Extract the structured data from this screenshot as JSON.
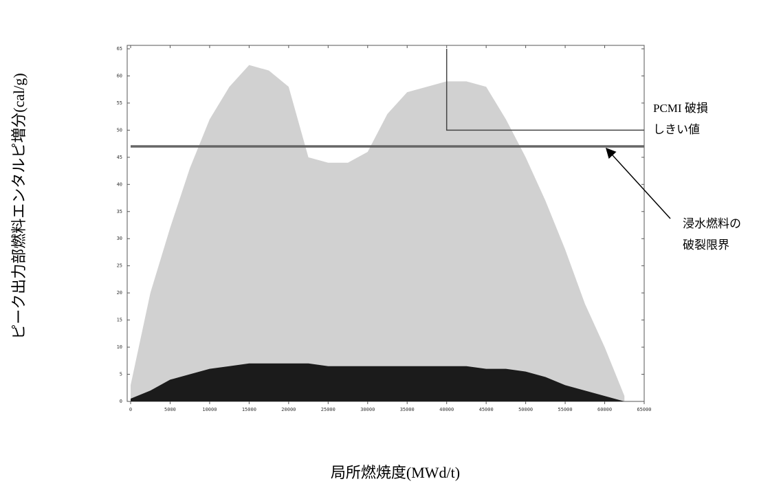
{
  "chart_data": {
    "type": "area",
    "xlabel": "局所燃焼度(MWd/t)",
    "ylabel": "ピーク出力部燃料エンタルピ増分(cal/g)",
    "x": [
      0,
      2500,
      5000,
      7500,
      10000,
      12500,
      15000,
      17500,
      20000,
      22500,
      25000,
      27500,
      30000,
      32500,
      35000,
      37500,
      40000,
      42500,
      45000,
      47500,
      50000,
      52500,
      55000,
      57500,
      60000,
      62500
    ],
    "series": [
      {
        "color": "#9a9a9a",
        "values": [
          3,
          20,
          32,
          43,
          52,
          58,
          62,
          61,
          58,
          45,
          44,
          44,
          46,
          53,
          57,
          58,
          59,
          59,
          58,
          52,
          45,
          37,
          28,
          18,
          10,
          1
        ]
      },
      {
        "color": "#111111",
        "values": [
          0.5,
          2,
          4,
          5,
          6,
          6.5,
          7,
          7,
          7,
          7,
          6.5,
          6.5,
          6.5,
          6.5,
          6.5,
          6.5,
          6.5,
          6.5,
          6,
          6,
          5.5,
          4.5,
          3,
          2,
          1,
          0
        ]
      }
    ],
    "xlim": [
      0,
      65000
    ],
    "ylim": [
      0,
      65
    ],
    "xticks": [
      0,
      5000,
      10000,
      15000,
      20000,
      25000,
      30000,
      35000,
      40000,
      45000,
      50000,
      55000,
      60000,
      65000
    ],
    "yticks": [
      0,
      5,
      10,
      15,
      20,
      25,
      30,
      35,
      40,
      45,
      50,
      55,
      60,
      65
    ],
    "lines": [
      {
        "color": "#666666",
        "x": [
          0,
          65000
        ],
        "y": [
          47,
          47
        ]
      },
      {
        "color": "#444444",
        "x": [
          40000,
          40000,
          65000
        ],
        "y": [
          65,
          50,
          50
        ]
      }
    ],
    "annotations": [
      {
        "lines": [
          "PCMI 破損",
          "しきい値"
        ]
      },
      {
        "lines": [
          "浸水燃料の",
          "破裂限界"
        ]
      }
    ]
  }
}
